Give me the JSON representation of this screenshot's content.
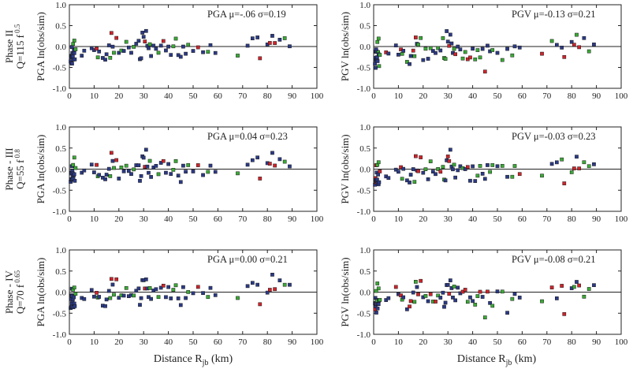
{
  "chart_data": {
    "type": "scatter",
    "x_ticks": [
      "0",
      "10",
      "20",
      "30",
      "40",
      "50",
      "60",
      "70",
      "80",
      "90",
      "100"
    ],
    "y_ticks": [
      "1.0",
      "0.5",
      "0.0",
      "-0.5",
      "-1.0"
    ],
    "xlim": [
      0,
      100
    ],
    "ylim": [
      -1.0,
      1.0
    ],
    "colors": {
      "blue": "#2b3a86",
      "green": "#3aaa35",
      "red": "#d1232a"
    },
    "xlabel_main": "Distance R",
    "xlabel_sub": "jb",
    "xlabel_unit": " (km)",
    "row_labels": [
      {
        "phase": "Phase II",
        "q_base": "Q=115 f",
        "q_exp": "0.5"
      },
      {
        "phase": "Phase - III",
        "q_base": "Q=55 f",
        "q_exp": "0.8"
      },
      {
        "phase": "Phase - IV",
        "q_base": "Q=70 f",
        "q_exp": "0.65"
      }
    ],
    "panels": [
      {
        "ylabel": "PGA ln(obs/sim)",
        "annotation": "PGA μ=-.06 σ=0.19",
        "mean": -0.06,
        "sigma": 0.19,
        "seed": 11,
        "kind": "pga",
        "shift": -0.06
      },
      {
        "ylabel": "PGV ln(obs/sim)",
        "annotation": "PGV μ=-0.13 σ=0.21",
        "mean": -0.13,
        "sigma": 0.21,
        "seed": 23,
        "kind": "pgv",
        "shift": -0.13
      },
      {
        "ylabel": "PGA ln(obs/sim)",
        "annotation": "PGA μ=0.04 σ=0.23",
        "mean": 0.04,
        "sigma": 0.23,
        "seed": 37,
        "kind": "pga",
        "shift": 0.04
      },
      {
        "ylabel": "PGV ln(obs/sim)",
        "annotation": "PGV μ=-0.03 σ=0.23",
        "mean": -0.03,
        "sigma": 0.23,
        "seed": 41,
        "kind": "pgv",
        "shift": -0.03
      },
      {
        "ylabel": "PGA ln(obs/sim)",
        "annotation": "PGA μ=0.00 σ=0.21",
        "mean": 0.0,
        "sigma": 0.21,
        "seed": 53,
        "kind": "pga",
        "shift": 0.0
      },
      {
        "ylabel": "PGV ln(obs/sim)",
        "annotation": "PGV μ=-0.08 σ=0.21",
        "mean": -0.08,
        "sigma": 0.21,
        "seed": 67,
        "kind": "pgv",
        "shift": -0.08
      }
    ],
    "points": [
      [
        0.5,
        -0.35,
        "b"
      ],
      [
        0.6,
        -0.28,
        "b"
      ],
      [
        0.7,
        -0.2,
        "b"
      ],
      [
        0.8,
        -0.3,
        "b"
      ],
      [
        0.9,
        -0.15,
        "b"
      ],
      [
        1.0,
        -0.25,
        "b"
      ],
      [
        1.1,
        -0.33,
        "b"
      ],
      [
        1.2,
        -0.1,
        "b"
      ],
      [
        1.3,
        -0.22,
        "b"
      ],
      [
        1.4,
        -0.18,
        "b"
      ],
      [
        1.6,
        -0.3,
        "b"
      ],
      [
        1.8,
        -0.12,
        "b"
      ],
      [
        2.0,
        -0.2,
        "b"
      ],
      [
        2.2,
        -0.28,
        "b"
      ],
      [
        1.0,
        0.05,
        "b"
      ],
      [
        1.5,
        0.1,
        "g"
      ],
      [
        2.0,
        0.18,
        "g"
      ],
      [
        2.5,
        -0.05,
        "g"
      ],
      [
        5,
        -0.15,
        "b"
      ],
      [
        6,
        -0.12,
        "b"
      ],
      [
        9,
        0.05,
        "b"
      ],
      [
        10,
        -0.1,
        "b"
      ],
      [
        11,
        0.05,
        "r"
      ],
      [
        11.5,
        -0.2,
        "g"
      ],
      [
        12,
        -0.08,
        "b"
      ],
      [
        13.5,
        -0.25,
        "b"
      ],
      [
        14.5,
        -0.3,
        "b"
      ],
      [
        15,
        -0.18,
        "b"
      ],
      [
        16,
        0.02,
        "b"
      ],
      [
        16.5,
        -0.22,
        "g"
      ],
      [
        17,
        0.3,
        "r"
      ],
      [
        17.5,
        0.1,
        "b"
      ],
      [
        18,
        -0.05,
        "g"
      ],
      [
        19,
        0.25,
        "r"
      ],
      [
        20,
        -0.18,
        "b"
      ],
      [
        21,
        0.0,
        "g"
      ],
      [
        22,
        -0.12,
        "b"
      ],
      [
        23,
        0.12,
        "g"
      ],
      [
        24,
        -0.05,
        "b"
      ],
      [
        25,
        -0.1,
        "b"
      ],
      [
        26,
        -0.02,
        "g"
      ],
      [
        27,
        0.05,
        "b"
      ],
      [
        28,
        0.15,
        "b"
      ],
      [
        28.5,
        -0.3,
        "b"
      ],
      [
        29,
        -0.22,
        "b"
      ],
      [
        29.5,
        0.3,
        "b"
      ],
      [
        30,
        0.22,
        "b"
      ],
      [
        30.5,
        0.1,
        "r"
      ],
      [
        31,
        0.38,
        "b"
      ],
      [
        31.5,
        0.05,
        "b"
      ],
      [
        32,
        -0.05,
        "b"
      ],
      [
        32.5,
        0.12,
        "g"
      ],
      [
        33,
        -0.15,
        "b"
      ],
      [
        34,
        0.05,
        "b"
      ],
      [
        35,
        0.02,
        "b"
      ],
      [
        36,
        -0.1,
        "g"
      ],
      [
        37,
        0.05,
        "b"
      ],
      [
        38,
        0.1,
        "r"
      ],
      [
        39,
        -0.05,
        "b"
      ],
      [
        40,
        0.08,
        "b"
      ],
      [
        41,
        -0.2,
        "b"
      ],
      [
        42,
        0.0,
        "g"
      ],
      [
        43,
        0.15,
        "g"
      ],
      [
        44,
        -0.1,
        "b"
      ],
      [
        45,
        -0.25,
        "b"
      ],
      [
        46,
        0.08,
        "b"
      ],
      [
        47,
        -0.12,
        "b"
      ],
      [
        48,
        0.02,
        "g"
      ],
      [
        50,
        -0.05,
        "b"
      ],
      [
        52,
        0.08,
        "r"
      ],
      [
        54,
        -0.1,
        "b"
      ],
      [
        56,
        -0.15,
        "g"
      ],
      [
        57,
        0.05,
        "b"
      ],
      [
        59,
        -0.05,
        "b"
      ],
      [
        68,
        -0.12,
        "g"
      ],
      [
        72,
        0.08,
        "b"
      ],
      [
        74,
        0.15,
        "b"
      ],
      [
        76,
        0.25,
        "b"
      ],
      [
        77,
        -0.28,
        "r"
      ],
      [
        80,
        0.05,
        "b"
      ],
      [
        81,
        0.12,
        "r"
      ],
      [
        82,
        0.35,
        "b"
      ],
      [
        83,
        0.1,
        "r"
      ],
      [
        85,
        0.2,
        "b"
      ],
      [
        87,
        0.15,
        "g"
      ],
      [
        89,
        0.1,
        "b"
      ]
    ]
  }
}
